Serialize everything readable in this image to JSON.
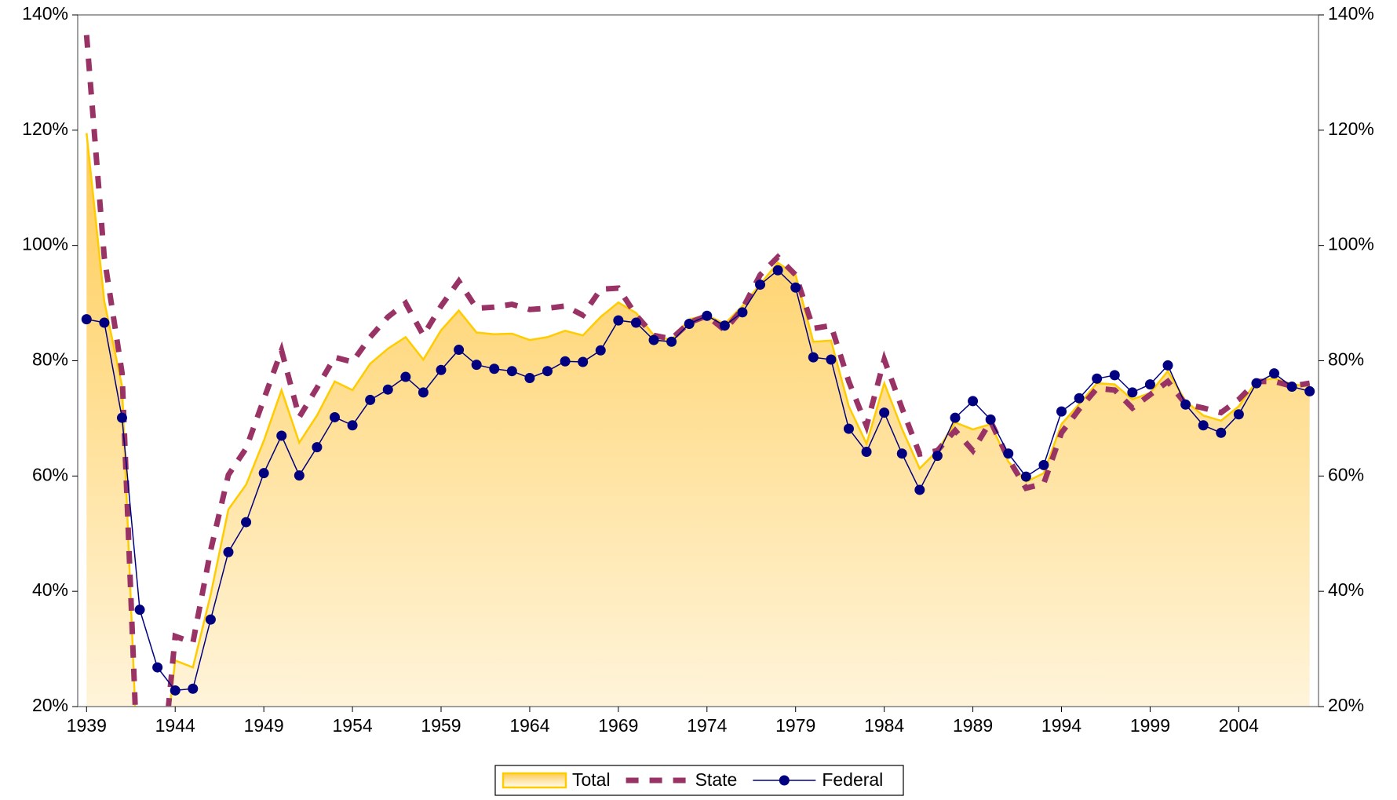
{
  "chart_data": {
    "type": "line",
    "x": [
      1939,
      1940,
      1941,
      1942,
      1943,
      1944,
      1945,
      1946,
      1947,
      1948,
      1949,
      1950,
      1951,
      1952,
      1953,
      1954,
      1955,
      1956,
      1957,
      1958,
      1959,
      1960,
      1961,
      1962,
      1963,
      1964,
      1965,
      1966,
      1967,
      1968,
      1969,
      1970,
      1971,
      1972,
      1973,
      1974,
      1975,
      1976,
      1977,
      1978,
      1979,
      1980,
      1981,
      1982,
      1983,
      1984,
      1985,
      1986,
      1987,
      1988,
      1989,
      1990,
      1991,
      1992,
      1993,
      1994,
      1995,
      1996,
      1997,
      1998,
      1999,
      2000,
      2001,
      2002,
      2003,
      2004,
      2005,
      2006,
      2007,
      2008
    ],
    "xlim": [
      1938.5,
      2008.5
    ],
    "xticks": [
      1939,
      1944,
      1949,
      1954,
      1959,
      1964,
      1969,
      1974,
      1979,
      1984,
      1989,
      1994,
      1999,
      2004
    ],
    "ylim": [
      20,
      140
    ],
    "yticks": [
      {
        "value": 20,
        "label": "20%"
      },
      {
        "value": 40,
        "label": "40%"
      },
      {
        "value": 60,
        "label": "60%"
      },
      {
        "value": 80,
        "label": "80%"
      },
      {
        "value": 100,
        "label": "100%"
      },
      {
        "value": 120,
        "label": "120%"
      },
      {
        "value": 140,
        "label": "140%"
      }
    ],
    "y2lim": [
      20,
      140
    ],
    "y2ticks": [
      {
        "value": 20,
        "label": "20%"
      },
      {
        "value": 40,
        "label": "40%"
      },
      {
        "value": 60,
        "label": "60%"
      },
      {
        "value": 80,
        "label": "80%"
      },
      {
        "value": 100,
        "label": "100%"
      },
      {
        "value": 120,
        "label": "120%"
      },
      {
        "value": 140,
        "label": "140%"
      }
    ],
    "legend": "bottom",
    "series": [
      {
        "name": "Total",
        "color": "#ffcc00",
        "style": "area",
        "values": [
          119.5,
          90.3,
          75.6,
          0,
          1,
          28.0,
          26.8,
          39.4,
          54.2,
          58.5,
          66.1,
          74.9,
          65.8,
          70.5,
          76.4,
          74.9,
          79.5,
          82.1,
          84.1,
          80.2,
          85.3,
          88.7,
          84.9,
          84.6,
          84.7,
          83.6,
          84.1,
          85.2,
          84.4,
          87.6,
          90.1,
          88.3,
          84.4,
          83.6,
          87.2,
          87.9,
          86.4,
          89.5,
          93.3,
          97.0,
          94.9,
          83.3,
          83.5,
          72.1,
          65.6,
          76.1,
          68.2,
          61.3,
          64.4,
          69.3,
          68.1,
          69.0,
          62.5,
          59.0,
          60.5,
          69.0,
          72.5,
          76.1,
          75.9,
          73.3,
          74.4,
          78.2,
          73.0,
          70.5,
          69.6,
          72.1,
          76.4,
          77.0,
          75.9,
          75.6
        ]
      },
      {
        "name": "State",
        "color": "#993366",
        "style": "dashed",
        "values": [
          136.5,
          97.9,
          77.9,
          0,
          0,
          32.2,
          31.1,
          47.1,
          60.2,
          64.8,
          73.3,
          81.8,
          70.2,
          75.3,
          80.6,
          79.8,
          84.1,
          87.6,
          90.0,
          84.4,
          89.5,
          93.8,
          89.1,
          89.3,
          89.8,
          88.9,
          89.1,
          89.5,
          87.9,
          92.4,
          92.6,
          87.9,
          84.4,
          83.8,
          86.6,
          87.8,
          85.3,
          89.0,
          94.9,
          98.0,
          94.9,
          85.6,
          86.1,
          76.4,
          68.7,
          80.2,
          71.8,
          63.8,
          64.4,
          67.9,
          64.4,
          69.5,
          63.0,
          57.9,
          58.7,
          67.5,
          71.6,
          75.2,
          74.9,
          71.8,
          74.1,
          76.4,
          72.5,
          71.8,
          71.0,
          73.3,
          76.4,
          76.4,
          75.6,
          76.1
        ]
      },
      {
        "name": "Federal",
        "color": "#000080",
        "style": "markers",
        "values": [
          87.2,
          86.6,
          70.1,
          36.8,
          26.8,
          22.8,
          23.1,
          35.1,
          46.8,
          52.0,
          60.5,
          67.0,
          60.1,
          65.0,
          70.2,
          68.8,
          73.2,
          75.0,
          77.2,
          74.5,
          78.4,
          81.9,
          79.3,
          78.6,
          78.2,
          77.0,
          78.2,
          79.9,
          79.8,
          81.8,
          87.0,
          86.6,
          83.6,
          83.3,
          86.4,
          87.8,
          86.1,
          88.4,
          93.2,
          95.7,
          92.7,
          80.6,
          80.2,
          68.2,
          64.2,
          71.0,
          63.9,
          57.6,
          63.5,
          70.1,
          73.0,
          69.8,
          63.9,
          59.9,
          61.9,
          71.2,
          73.5,
          76.9,
          77.5,
          74.5,
          75.9,
          79.2,
          72.4,
          68.8,
          67.5,
          70.7,
          76.1,
          77.8,
          75.5,
          74.7
        ]
      }
    ]
  }
}
